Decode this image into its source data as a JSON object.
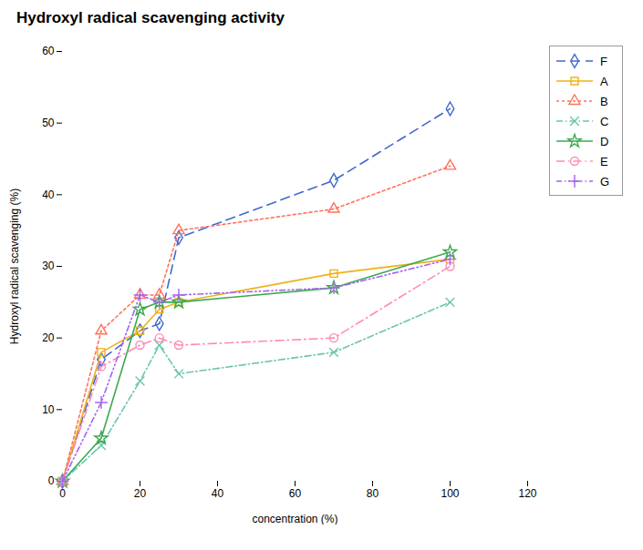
{
  "chart_data": {
    "type": "line",
    "title": "Hydroxyl radical scavenging activity",
    "xlabel": "concentration (%)",
    "ylabel": "Hydroxyl radical scavenging (%)",
    "x": [
      0,
      10,
      20,
      25,
      30,
      70,
      100
    ],
    "xlim": [
      0,
      120
    ],
    "ylim": [
      0,
      60
    ],
    "xticks": [
      0,
      20,
      40,
      60,
      80,
      100,
      120
    ],
    "yticks": [
      0,
      10,
      20,
      30,
      40,
      50,
      60
    ],
    "grid": false,
    "legend": "upper right",
    "series": [
      {
        "name": "F",
        "values": [
          0,
          17,
          21,
          22,
          34,
          42,
          52
        ],
        "marker": "diamond",
        "line_style": "dashed"
      },
      {
        "name": "A",
        "values": [
          0,
          18,
          21,
          24,
          25,
          29,
          31
        ],
        "marker": "square",
        "line_style": "solid"
      },
      {
        "name": "B",
        "values": [
          0,
          21,
          26,
          26,
          35,
          38,
          44
        ],
        "marker": "triangle",
        "line_style": "dotted"
      },
      {
        "name": "C",
        "values": [
          0,
          5,
          14,
          19,
          15,
          18,
          25
        ],
        "marker": "times",
        "line_style": "dashdot"
      },
      {
        "name": "D",
        "values": [
          0,
          6,
          24,
          25,
          25,
          27,
          32
        ],
        "marker": "star",
        "line_style": "solid"
      },
      {
        "name": "E",
        "values": [
          0,
          16,
          19,
          20,
          19,
          20,
          30
        ],
        "marker": "circle",
        "line_style": "longdashdot"
      },
      {
        "name": "G",
        "values": [
          0,
          11,
          26,
          25,
          26,
          27,
          31
        ],
        "marker": "plus",
        "line_style": "dashdotdot"
      }
    ]
  }
}
